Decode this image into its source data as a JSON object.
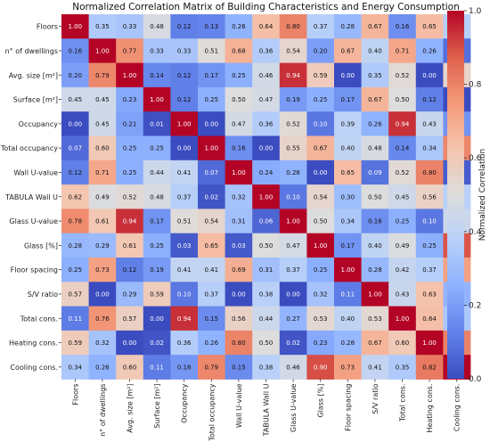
{
  "chart_data": {
    "type": "heatmap",
    "title": "Normalized Correlation Matrix of Building Characteristics and Energy Consumption",
    "xlabel": "",
    "ylabel": "",
    "labels": [
      "Floors",
      "n° of dwellings",
      "Avg. size [m²]",
      "Surface [m²]",
      "Occupancy",
      "Total occupancy",
      "Wall U-value",
      "TABULA Wall U",
      "Glass U-value",
      "Glass [%]",
      "Floor spacing",
      "S/V ratio",
      "Total cons.",
      "Heating cons.",
      "Cooling cons."
    ],
    "matrix": [
      [
        1.0,
        0.35,
        0.33,
        0.48,
        0.12,
        0.13,
        0.26,
        0.64,
        0.8,
        0.37,
        0.28,
        0.67,
        0.16,
        0.65,
        0.37
      ],
      [
        0.16,
        1.0,
        0.77,
        0.33,
        0.33,
        0.51,
        0.68,
        0.36,
        0.54,
        0.2,
        0.67,
        0.4,
        0.71,
        0.26,
        0.08
      ],
      [
        0.2,
        0.79,
        1.0,
        0.14,
        0.12,
        0.17,
        0.25,
        0.46,
        0.94,
        0.59,
        0.0,
        0.35,
        0.52,
        0.0,
        0.55
      ],
      [
        0.45,
        0.45,
        0.23,
        1.0,
        0.12,
        0.25,
        0.5,
        0.47,
        0.19,
        0.25,
        0.17,
        0.67,
        0.5,
        0.12,
        0.0
      ],
      [
        0.0,
        0.45,
        0.21,
        0.01,
        1.0,
        0.0,
        0.47,
        0.36,
        0.52,
        0.1,
        0.39,
        0.26,
        0.94,
        0.43,
        0.17
      ],
      [
        0.07,
        0.6,
        0.25,
        0.25,
        0.0,
        1.0,
        0.16,
        0.0,
        0.55,
        0.67,
        0.4,
        0.48,
        0.14,
        0.34,
        0.79
      ],
      [
        0.12,
        0.71,
        0.25,
        0.44,
        0.41,
        0.07,
        1.0,
        0.24,
        0.26,
        0.0,
        0.65,
        0.09,
        0.52,
        0.8,
        0.04
      ],
      [
        0.62,
        0.49,
        0.52,
        0.48,
        0.37,
        0.02,
        0.32,
        1.0,
        0.1,
        0.54,
        0.3,
        0.5,
        0.45,
        0.56,
        0.38
      ],
      [
        0.78,
        0.61,
        0.94,
        0.17,
        0.51,
        0.54,
        0.31,
        0.06,
        1.0,
        0.5,
        0.34,
        0.16,
        0.25,
        0.1,
        0.44
      ],
      [
        0.28,
        0.29,
        0.61,
        0.25,
        0.03,
        0.65,
        0.03,
        0.5,
        0.47,
        1.0,
        0.17,
        0.4,
        0.49,
        0.25,
        0.89
      ],
      [
        0.25,
        0.73,
        0.12,
        0.19,
        0.41,
        0.41,
        0.69,
        0.31,
        0.37,
        0.25,
        1.0,
        0.28,
        0.42,
        0.37,
        0.73
      ],
      [
        0.57,
        0.0,
        0.29,
        0.59,
        0.1,
        0.37,
        0.0,
        0.38,
        0.0,
        0.32,
        0.11,
        1.0,
        0.43,
        0.63,
        0.27
      ],
      [
        0.11,
        0.76,
        0.57,
        0.0,
        0.94,
        0.15,
        0.56,
        0.44,
        0.27,
        0.53,
        0.4,
        0.53,
        1.0,
        0.64,
        0.34
      ],
      [
        0.59,
        0.32,
        0.0,
        0.02,
        0.36,
        0.26,
        0.8,
        0.5,
        0.02,
        0.23,
        0.28,
        0.67,
        0.6,
        1.0,
        0.8
      ],
      [
        0.34,
        0.26,
        0.6,
        0.11,
        0.18,
        0.79,
        0.15,
        0.38,
        0.46,
        0.9,
        0.73,
        0.41,
        0.35,
        0.82,
        1.0
      ]
    ],
    "colorbar": {
      "label": "Normalized Correlation",
      "range": [
        0,
        1
      ],
      "ticks": [
        "0.0",
        "0.2",
        "0.4",
        "0.6",
        "0.8",
        "1.0"
      ],
      "colormap": "coolwarm"
    },
    "grid": false,
    "legend_placement": "right"
  }
}
